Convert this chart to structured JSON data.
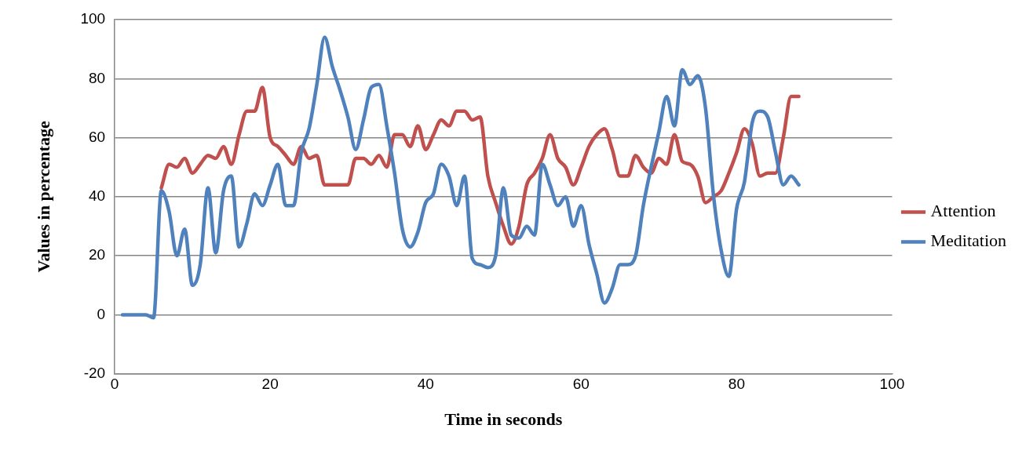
{
  "chart_data": {
    "type": "line",
    "xlabel": "Time in seconds",
    "ylabel": "Values in percentage",
    "x": [
      1,
      2,
      3,
      4,
      5,
      6,
      7,
      8,
      9,
      10,
      11,
      12,
      13,
      14,
      15,
      16,
      17,
      18,
      19,
      20,
      21,
      22,
      23,
      24,
      25,
      26,
      27,
      28,
      29,
      30,
      31,
      32,
      33,
      34,
      35,
      36,
      37,
      38,
      39,
      40,
      41,
      42,
      43,
      44,
      45,
      46,
      47,
      48,
      49,
      50,
      51,
      52,
      53,
      54,
      55,
      56,
      57,
      58,
      59,
      60,
      61,
      62,
      63,
      64,
      65,
      66,
      67,
      68,
      69,
      70,
      71,
      72,
      73,
      74,
      75,
      76,
      77,
      78,
      79,
      80,
      81,
      82,
      83,
      84,
      85,
      86,
      87,
      88
    ],
    "series": [
      {
        "name": "Attention",
        "color": "#c0504d",
        "values": [
          null,
          null,
          null,
          null,
          null,
          43,
          51,
          50,
          53,
          48,
          51,
          54,
          53,
          57,
          51,
          61,
          69,
          69,
          77,
          60,
          57,
          54,
          51,
          57,
          53,
          54,
          44,
          44,
          44,
          44,
          53,
          53,
          51,
          54,
          50,
          61,
          61,
          57,
          64,
          56,
          61,
          66,
          64,
          69,
          69,
          66,
          67,
          47,
          38,
          30,
          24,
          30,
          44,
          48,
          53,
          61,
          53,
          50,
          44,
          50,
          57,
          61,
          63,
          56,
          47,
          47,
          54,
          50,
          48,
          53,
          51,
          61,
          52,
          51,
          47,
          38,
          40,
          42,
          48,
          55,
          63,
          58,
          47,
          48,
          48,
          60,
          74,
          74
        ]
      },
      {
        "name": "Meditation",
        "color": "#4f81bd",
        "values": [
          0,
          0,
          0,
          0,
          -1,
          42,
          35,
          20,
          29,
          10,
          17,
          43,
          21,
          42,
          47,
          23,
          31,
          41,
          37,
          44,
          51,
          37,
          37,
          55,
          63,
          78,
          94,
          84,
          76,
          67,
          56,
          66,
          77,
          78,
          64,
          48,
          29,
          23,
          28,
          38,
          41,
          51,
          47,
          37,
          47,
          19,
          17,
          16,
          20,
          43,
          27,
          26,
          30,
          27,
          51,
          44,
          37,
          40,
          30,
          37,
          24,
          14,
          4,
          9,
          17,
          17,
          20,
          37,
          50,
          62,
          74,
          64,
          83,
          78,
          81,
          70,
          41,
          22,
          13,
          36,
          45,
          65,
          69,
          67,
          55,
          44,
          47,
          44
        ]
      }
    ],
    "xlim": [
      0,
      100
    ],
    "xticks": [
      0,
      20,
      40,
      60,
      80,
      100
    ],
    "ylim": [
      -20,
      100
    ],
    "yticks": [
      -20,
      0,
      20,
      40,
      60,
      80,
      100
    ],
    "grid": "y",
    "legend": "right",
    "marker": "none",
    "line_style": "solid"
  }
}
